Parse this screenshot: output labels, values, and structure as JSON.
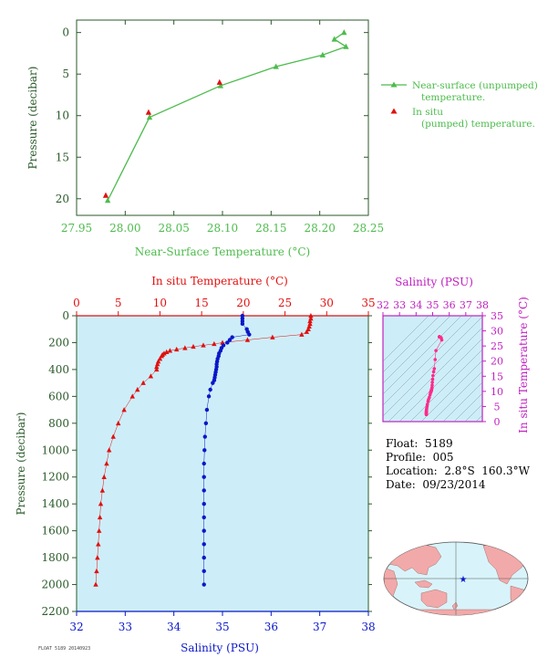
{
  "colors": {
    "green": "#4cbc4c",
    "red": "#e11010",
    "blue": "#0a17c8",
    "magenta": "#c020c0",
    "pink": "#ff2a8c",
    "axis": "#2a5a2a",
    "panel_bg": "#cdeef8",
    "land": "#f2a9a9",
    "ocean": "#d8f4fa"
  },
  "chart_data": [
    {
      "id": "near_surface",
      "type": "line",
      "xlabel": "Near-Surface Temperature (°C)",
      "ylabel": "Pressure (decibar)",
      "xlim": [
        27.95,
        28.25
      ],
      "ylim": [
        22,
        -1.5
      ],
      "xticks": [
        "27.95",
        "28.00",
        "28.05",
        "28.10",
        "28.15",
        "28.20",
        "28.25"
      ],
      "yticks": [
        "0",
        "5",
        "10",
        "15",
        "20"
      ],
      "series": [
        {
          "name": "Near-surface (unpumped) temperature.",
          "x": [
            28.225,
            28.215,
            28.227,
            28.203,
            28.155,
            28.098,
            28.025,
            27.982
          ],
          "y": [
            0.0,
            0.8,
            1.7,
            2.7,
            4.1,
            6.4,
            10.2,
            20.2
          ]
        },
        {
          "name": "In situ (pumped) temperature.",
          "x": [
            28.097,
            28.024,
            27.98
          ],
          "y": [
            6.0,
            9.6,
            19.6
          ]
        }
      ]
    },
    {
      "id": "profile",
      "type": "scatter",
      "title": "In situ Temperature (°C)",
      "xlabel": "Salinity (PSU)",
      "ylabel": "Pressure (decibar)",
      "temp_lim": [
        0,
        35
      ],
      "sal_lim": [
        32,
        38
      ],
      "ylim": [
        2200,
        0
      ],
      "temp_ticks": [
        "0",
        "5",
        "10",
        "15",
        "20",
        "25",
        "30",
        "35"
      ],
      "sal_ticks": [
        "32",
        "33",
        "34",
        "35",
        "36",
        "37",
        "38"
      ],
      "p_ticks": [
        "0",
        "200",
        "400",
        "600",
        "800",
        "1000",
        "1200",
        "1400",
        "1600",
        "1800",
        "2000",
        "2200"
      ],
      "temperature": {
        "p": [
          0,
          20,
          40,
          60,
          80,
          100,
          120,
          140,
          160,
          180,
          200,
          210,
          220,
          230,
          240,
          250,
          260,
          270,
          280,
          290,
          300,
          320,
          340,
          360,
          380,
          400,
          450,
          500,
          550,
          600,
          700,
          800,
          900,
          1000,
          1100,
          1200,
          1300,
          1400,
          1500,
          1600,
          1700,
          1800,
          1900,
          2000
        ],
        "t": [
          28.1,
          28.1,
          28.0,
          28.0,
          27.9,
          27.8,
          27.6,
          27.0,
          23.5,
          20.5,
          17.5,
          16.5,
          15.2,
          14.0,
          13.0,
          12.0,
          11.2,
          10.8,
          10.5,
          10.3,
          10.2,
          10.0,
          9.8,
          9.7,
          9.6,
          9.6,
          8.9,
          8.0,
          7.3,
          6.7,
          5.7,
          5.0,
          4.4,
          3.9,
          3.6,
          3.3,
          3.1,
          2.9,
          2.8,
          2.7,
          2.6,
          2.5,
          2.4,
          2.3
        ]
      },
      "salinity": {
        "p": [
          0,
          20,
          40,
          60,
          100,
          120,
          140,
          160,
          180,
          200,
          220,
          240,
          260,
          280,
          300,
          320,
          340,
          360,
          380,
          400,
          420,
          440,
          460,
          480,
          500,
          550,
          600,
          700,
          800,
          900,
          1000,
          1100,
          1200,
          1300,
          1400,
          1500,
          1600,
          1700,
          1800,
          1900,
          2000
        ],
        "s": [
          35.41,
          35.41,
          35.41,
          35.41,
          35.5,
          35.52,
          35.55,
          35.2,
          35.15,
          35.1,
          35.02,
          34.98,
          34.96,
          34.93,
          34.92,
          34.9,
          34.89,
          34.88,
          34.88,
          34.87,
          34.86,
          34.85,
          34.84,
          34.83,
          34.8,
          34.75,
          34.72,
          34.68,
          34.66,
          34.64,
          34.63,
          34.62,
          34.62,
          34.62,
          34.62,
          34.62,
          34.62,
          34.62,
          34.62,
          34.62,
          34.62
        ]
      }
    },
    {
      "id": "ts_diagram",
      "type": "scatter",
      "title": "Salinity (PSU)",
      "ylabel": "In situ Temperature (°C)",
      "xlim": [
        32,
        38
      ],
      "ylim": [
        0,
        35
      ],
      "xticks": [
        "32",
        "33",
        "34",
        "35",
        "36",
        "37",
        "38"
      ],
      "yticks": [
        "0",
        "5",
        "10",
        "15",
        "20",
        "25",
        "30",
        "35"
      ]
    }
  ],
  "info": {
    "float": "Float:  5189",
    "profile": "Profile:  005",
    "location": "Location:  2.8°S  160.3°W",
    "date": "Date:  09/23/2014"
  },
  "caption": "FLOAT 5189 20140923"
}
